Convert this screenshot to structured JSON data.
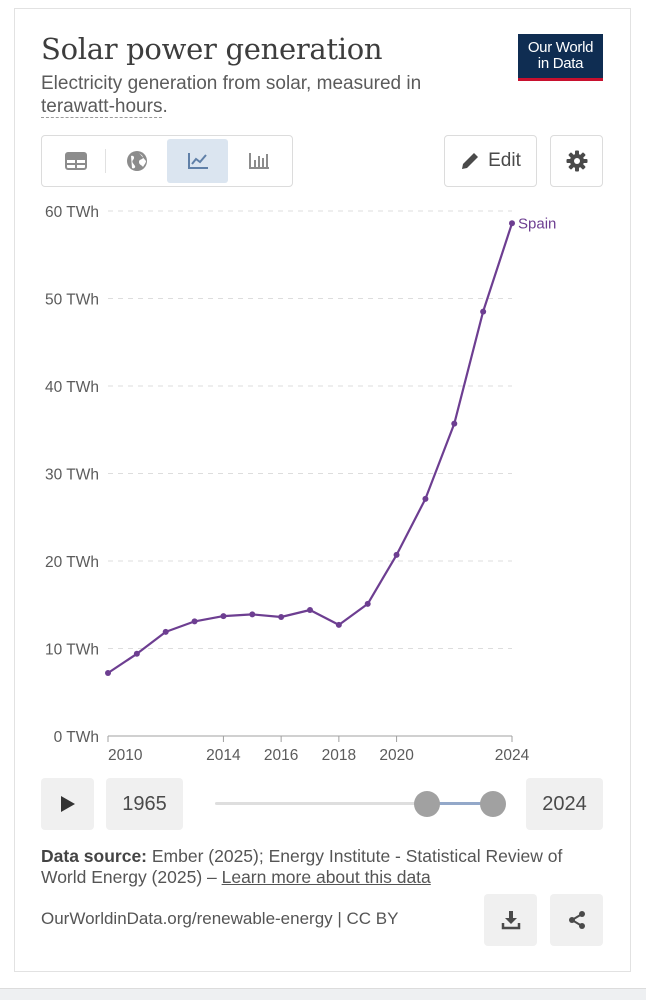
{
  "header": {
    "title": "Solar power generation",
    "subtitle_prefix": "Electricity generation from solar, measured in ",
    "subtitle_term": "terawatt-hours",
    "subtitle_suffix": "."
  },
  "logo": {
    "line1": "Our World",
    "line2": "in Data"
  },
  "tabs": [
    {
      "name": "table",
      "icon": "table-icon",
      "active": false
    },
    {
      "name": "map",
      "icon": "globe-icon",
      "active": false
    },
    {
      "name": "line-chart",
      "icon": "line-chart-icon",
      "active": true
    },
    {
      "name": "bar-chart",
      "icon": "bar-chart-icon",
      "active": false
    }
  ],
  "toolbar": {
    "edit_label": "Edit",
    "edit_icon": "pencil-icon",
    "settings_icon": "gear-icon"
  },
  "chart_data": {
    "type": "line",
    "title": "Solar power generation",
    "y_tick_labels": [
      "0 TWh",
      "10 TWh",
      "20 TWh",
      "30 TWh",
      "40 TWh",
      "50 TWh",
      "60 TWh"
    ],
    "y_ticks": [
      0,
      10,
      20,
      30,
      40,
      50,
      60
    ],
    "ylim": [
      0,
      60
    ],
    "x_tick_labels": [
      "2010",
      "2014",
      "2016",
      "2018",
      "2020",
      "2024"
    ],
    "x_ticks": [
      2010,
      2014,
      2016,
      2018,
      2020,
      2024
    ],
    "xlim": [
      2010,
      2024
    ],
    "grid": "horizontal dashed",
    "series": [
      {
        "name": "Spain",
        "color": "#6d3e91",
        "x": [
          2010,
          2011,
          2012,
          2013,
          2014,
          2015,
          2016,
          2017,
          2018,
          2019,
          2020,
          2021,
          2022,
          2023,
          2024
        ],
        "values": [
          7.2,
          9.4,
          11.9,
          13.1,
          13.7,
          13.9,
          13.6,
          14.4,
          12.7,
          15.1,
          20.7,
          27.1,
          35.7,
          48.5,
          58.6
        ]
      }
    ]
  },
  "timeline": {
    "start_year": "1965",
    "end_year": "2024",
    "play_icon": "play-icon"
  },
  "source": {
    "label": "Data source:",
    "text": " Ember (2025); Energy Institute - Statistical Review of World Energy (2025) – ",
    "link": "Learn more about this data"
  },
  "footer": {
    "url": "OurWorldinData.org/renewable-energy | CC BY",
    "download_icon": "download-icon",
    "share_icon": "share-icon"
  }
}
